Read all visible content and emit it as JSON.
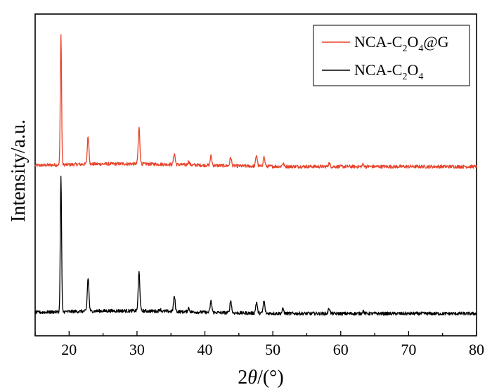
{
  "chart_data": {
    "type": "line",
    "xlabel": "2θ/(°)",
    "xlabel_parts": {
      "pre": "2",
      "theta": "θ",
      "post": "/(°)"
    },
    "ylabel": "Intensity/a.u.",
    "xlim": [
      15,
      80
    ],
    "x_ticks": [
      20,
      30,
      40,
      50,
      60,
      70,
      80
    ],
    "y_ticks_labeled": false,
    "legend_position": "top-right",
    "series": [
      {
        "name": "NCA-C2O4@G",
        "label_parts": [
          "NCA-C",
          "2",
          "O",
          "4",
          "@G"
        ],
        "color": "#e8442c",
        "baseline": 3.05,
        "peaks": [
          {
            "x": 18.8,
            "height": 2.35
          },
          {
            "x": 22.8,
            "height": 0.5
          },
          {
            "x": 30.3,
            "height": 0.65
          },
          {
            "x": 35.5,
            "height": 0.2
          },
          {
            "x": 37.6,
            "height": 0.06
          },
          {
            "x": 40.9,
            "height": 0.17
          },
          {
            "x": 43.8,
            "height": 0.15
          },
          {
            "x": 47.6,
            "height": 0.2
          },
          {
            "x": 48.7,
            "height": 0.17
          },
          {
            "x": 51.5,
            "height": 0.06
          },
          {
            "x": 58.3,
            "height": 0.06
          },
          {
            "x": 63.3,
            "height": 0.04
          }
        ]
      },
      {
        "name": "NCA-C2O4",
        "label_parts": [
          "NCA-C",
          "2",
          "O",
          "4",
          ""
        ],
        "color": "#000000",
        "baseline": 0.4,
        "peaks": [
          {
            "x": 18.8,
            "height": 2.45
          },
          {
            "x": 22.8,
            "height": 0.6
          },
          {
            "x": 30.3,
            "height": 0.7
          },
          {
            "x": 33.4,
            "height": 0.04
          },
          {
            "x": 35.5,
            "height": 0.27
          },
          {
            "x": 37.6,
            "height": 0.07
          },
          {
            "x": 40.9,
            "height": 0.2
          },
          {
            "x": 43.8,
            "height": 0.22
          },
          {
            "x": 47.6,
            "height": 0.2
          },
          {
            "x": 48.7,
            "height": 0.22
          },
          {
            "x": 51.5,
            "height": 0.08
          },
          {
            "x": 58.3,
            "height": 0.1
          },
          {
            "x": 63.3,
            "height": 0.05
          }
        ]
      }
    ]
  }
}
